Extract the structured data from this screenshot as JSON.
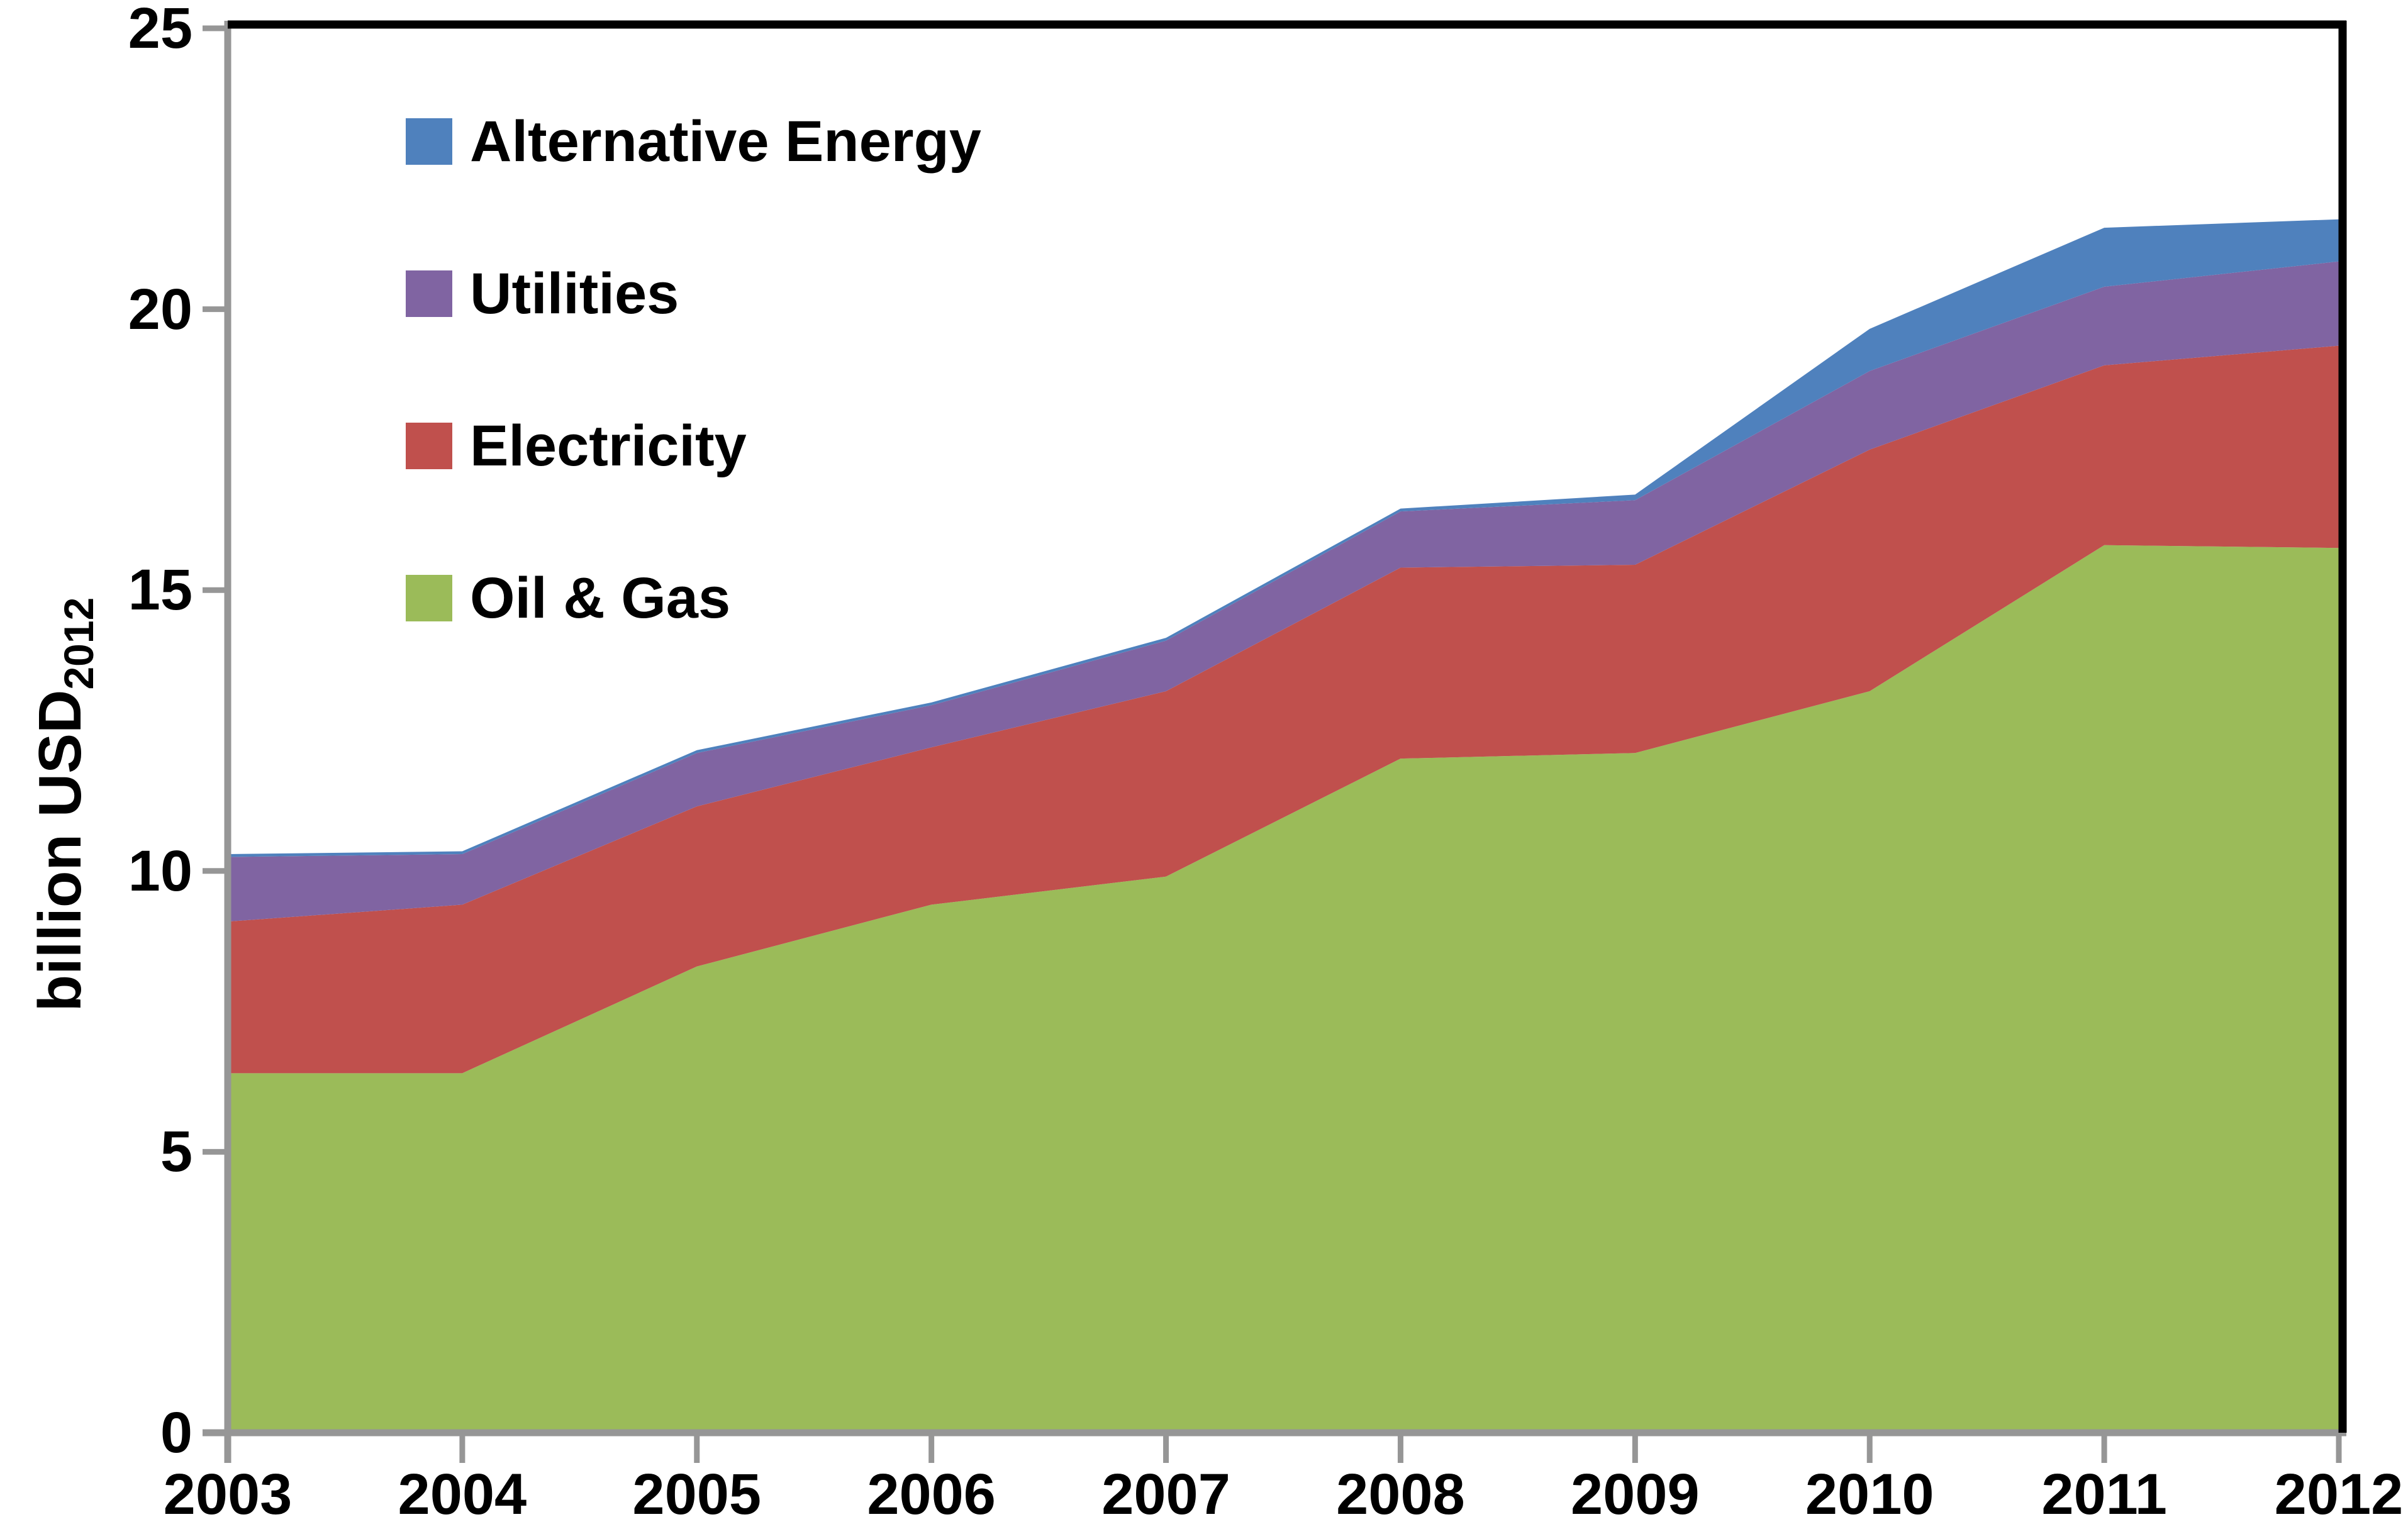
{
  "chart_data": {
    "type": "area",
    "stacked": true,
    "title": "",
    "categories": [
      "2003",
      "2004",
      "2005",
      "2006",
      "2007",
      "2008",
      "2009",
      "2010",
      "2011",
      "2012"
    ],
    "series": [
      {
        "name": "Oil & Gas",
        "color": "#9BBB59",
        "values": [
          6.4,
          6.4,
          8.3,
          9.4,
          9.9,
          12.0,
          12.1,
          13.2,
          15.8,
          15.75
        ]
      },
      {
        "name": "Electricity",
        "color": "#C0504D",
        "values": [
          2.7,
          3.0,
          2.85,
          2.8,
          3.3,
          3.4,
          3.35,
          4.3,
          3.2,
          3.6
        ]
      },
      {
        "name": "Utilities",
        "color": "#8064A2",
        "values": [
          1.15,
          0.9,
          0.95,
          0.75,
          0.9,
          1.0,
          1.15,
          1.4,
          1.4,
          1.5
        ]
      },
      {
        "name": "Alternative Energy",
        "color": "#4F81BD",
        "values": [
          0.05,
          0.05,
          0.05,
          0.05,
          0.05,
          0.05,
          0.1,
          0.75,
          1.05,
          0.75
        ]
      }
    ],
    "ylabel_main": "billion USD",
    "ylabel_sub": "2012",
    "xlabel": "",
    "ylim": [
      0,
      25
    ],
    "yticks": [
      0,
      5,
      10,
      15,
      20,
      25
    ],
    "grid": false,
    "legend_position": "inside-upper-left"
  },
  "legend": {
    "items": [
      {
        "label": "Alternative Energy",
        "color": "#4F81BD"
      },
      {
        "label": "Utilities",
        "color": "#8064A2"
      },
      {
        "label": "Electricity",
        "color": "#C0504D"
      },
      {
        "label": "Oil & Gas",
        "color": "#9BBB59"
      }
    ]
  },
  "colors": {
    "axis_gray": "#969696",
    "border_black": "#000000",
    "background": "#FFFFFF"
  }
}
